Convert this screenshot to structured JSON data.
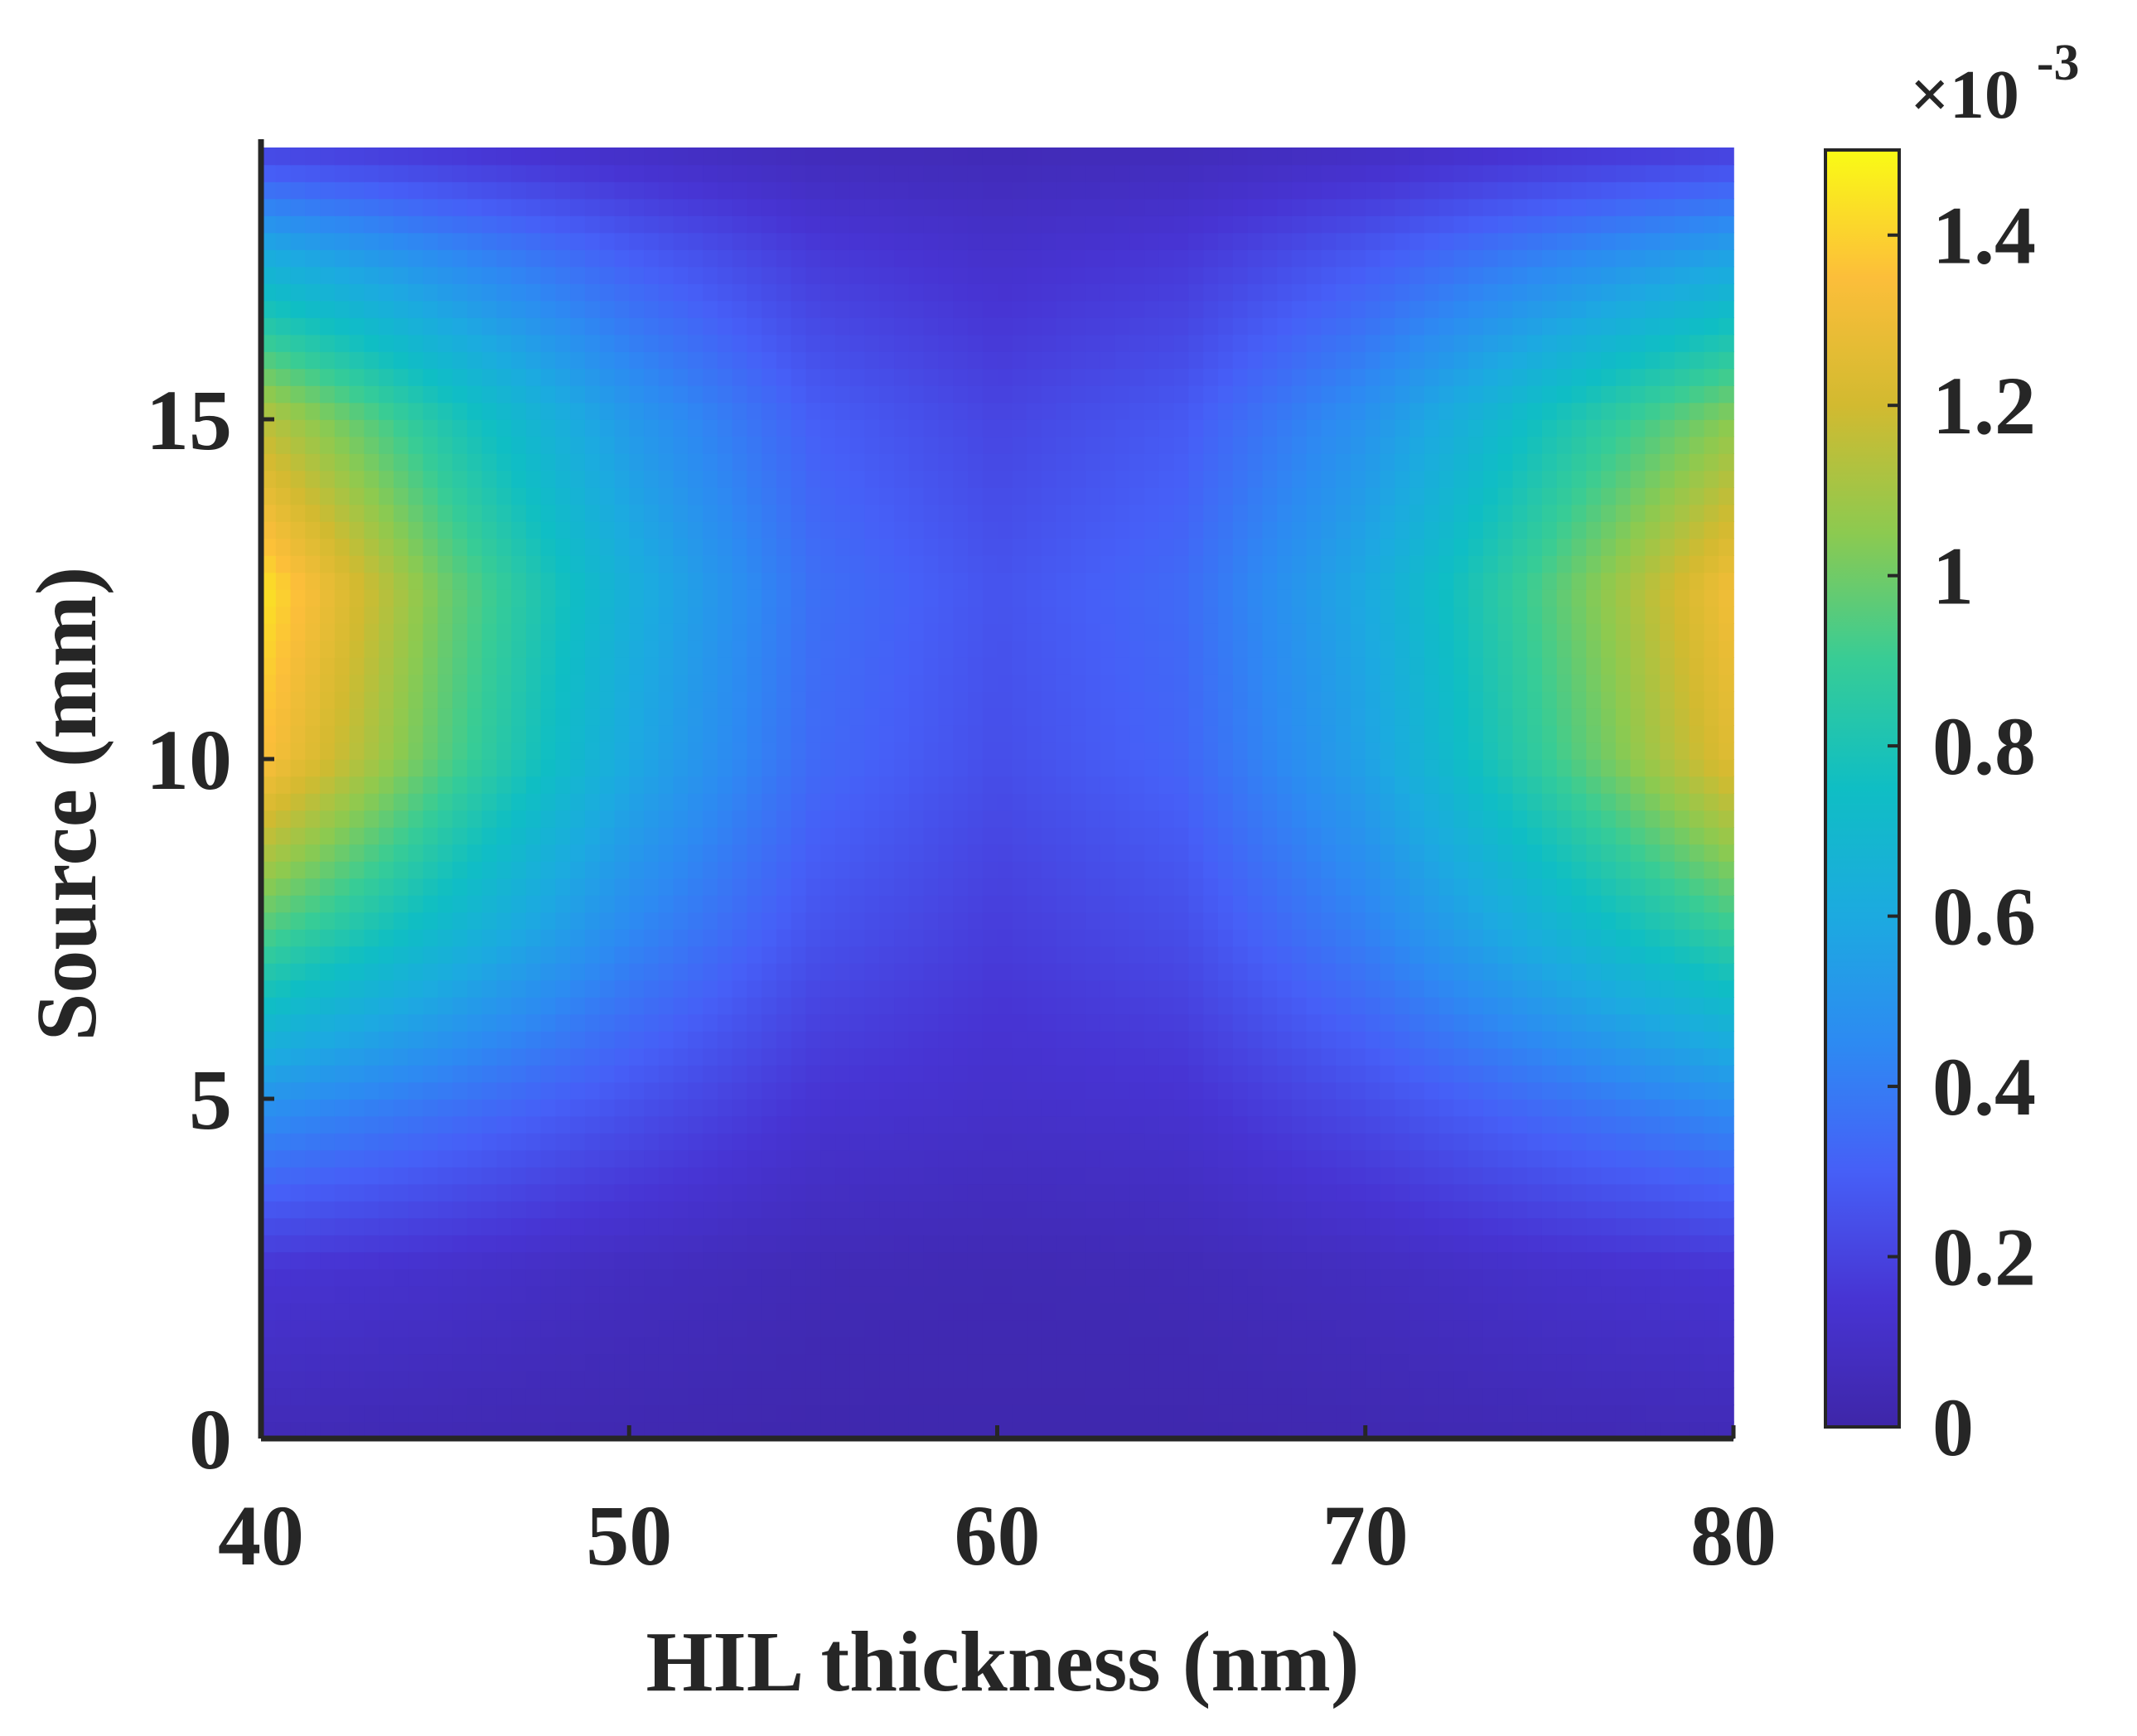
{
  "chart_data": {
    "type": "heatmap",
    "title": "",
    "xlabel": "HIL thickness (nm)",
    "ylabel": "Source (mm)",
    "xlim": [
      40,
      80
    ],
    "ylim": [
      0,
      19
    ],
    "x_ticks": [
      40,
      50,
      60,
      70,
      80
    ],
    "x_tick_labels": [
      "40",
      "50",
      "60",
      "70",
      "80"
    ],
    "y_ticks": [
      0,
      5,
      10,
      15
    ],
    "y_tick_labels": [
      "0",
      "5",
      "10",
      "15"
    ],
    "colormap": "parula",
    "colorbar": {
      "min": 0,
      "max": 0.0015,
      "ticks": [
        0,
        0.0002,
        0.0004,
        0.0006,
        0.0008,
        0.001,
        0.0012,
        0.0014
      ],
      "tick_labels": [
        "0",
        "0.2",
        "0.4",
        "0.6",
        "0.8",
        "1",
        "1.2",
        "1.4"
      ],
      "multiplier_base": "×10",
      "multiplier_exponent": "-3"
    },
    "x": [
      40,
      45,
      50,
      55,
      60,
      65,
      70,
      75,
      80
    ],
    "y": [
      0,
      2.5,
      5,
      7.5,
      10,
      12.5,
      15,
      17.5,
      19
    ],
    "z": [
      [
        5e-05,
        4e-05,
        3e-05,
        2e-05,
        2e-05,
        2e-05,
        3e-05,
        4e-05,
        5e-05
      ],
      [
        0.00015,
        0.00012,
        8e-05,
        5e-05,
        4e-05,
        5e-05,
        8e-05,
        0.00012,
        0.00015
      ],
      [
        0.0005,
        0.00038,
        0.00026,
        0.00015,
        0.00012,
        0.00014,
        0.00024,
        0.00036,
        0.00048
      ],
      [
        0.00095,
        0.0007,
        0.00045,
        0.00026,
        0.00018,
        0.00024,
        0.00042,
        0.00066,
        0.0009
      ],
      [
        0.00135,
        0.00095,
        0.0006,
        0.00034,
        0.00024,
        0.00032,
        0.00056,
        0.0009,
        0.00125
      ],
      [
        0.00145,
        0.001,
        0.00064,
        0.00036,
        0.00026,
        0.00034,
        0.0006,
        0.00095,
        0.00132
      ],
      [
        0.00115,
        0.00082,
        0.00052,
        0.0003,
        0.00021,
        0.00028,
        0.00049,
        0.00078,
        0.00105
      ],
      [
        0.0006,
        0.00044,
        0.00029,
        0.00017,
        0.00012,
        0.00016,
        0.00027,
        0.00041,
        0.00055
      ],
      [
        0.0002,
        0.00015,
        0.0001,
        6e-05,
        5e-05,
        6e-05,
        9e-05,
        0.00014,
        0.00018
      ]
    ]
  }
}
